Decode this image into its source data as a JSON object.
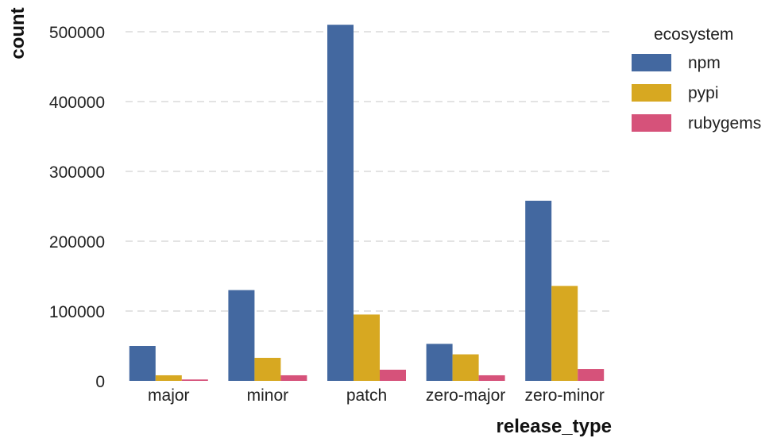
{
  "chart_data": {
    "type": "bar",
    "categories": [
      "major",
      "minor",
      "patch",
      "zero-major",
      "zero-minor"
    ],
    "series": [
      {
        "name": "npm",
        "color": "#4368a0",
        "values": [
          50000,
          130000,
          510000,
          53000,
          258000
        ]
      },
      {
        "name": "pypi",
        "color": "#d7a821",
        "values": [
          8000,
          33000,
          95000,
          38000,
          136000
        ]
      },
      {
        "name": "rubygems",
        "color": "#d6527a",
        "values": [
          2000,
          8000,
          16000,
          8000,
          17000
        ]
      }
    ],
    "xlabel": "release_type",
    "ylabel": "count",
    "ylim": [
      0,
      510000
    ],
    "yticks": [
      0,
      100000,
      200000,
      300000,
      400000,
      500000
    ],
    "ytick_labels": [
      "0",
      "100000",
      "200000",
      "300000",
      "400000",
      "500000"
    ],
    "grid": "horizontal dashed",
    "legend": {
      "title": "ecosystem",
      "position": "right-top"
    }
  }
}
